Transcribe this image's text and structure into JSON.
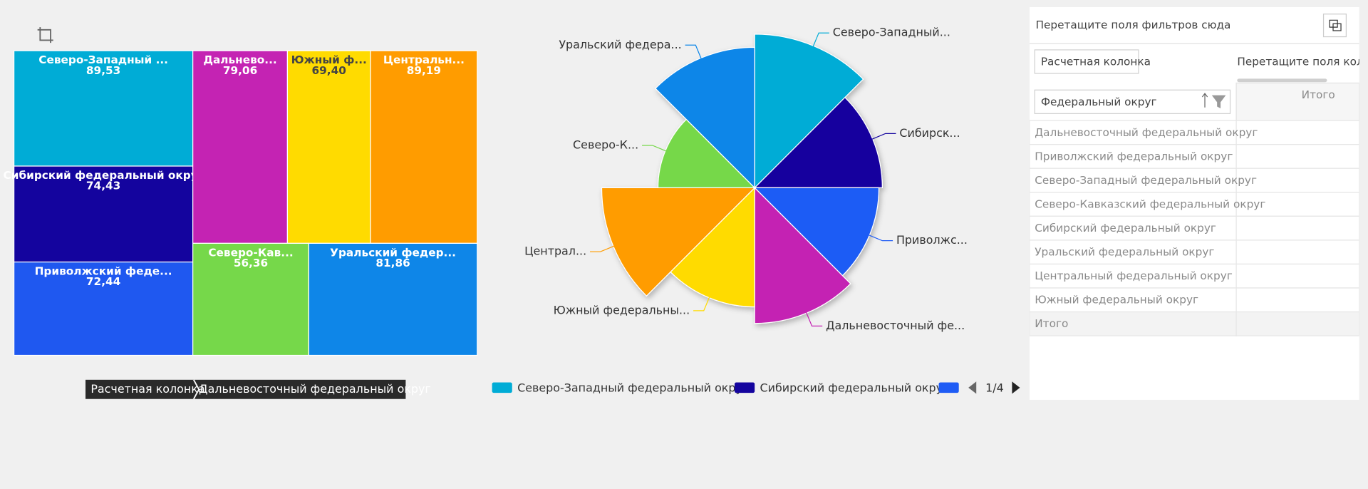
{
  "chart_data": [
    {
      "type": "treemap",
      "categories": [
        "Северо-Западный ...",
        "Сибирский федеральный округ",
        "Приволжский феде...",
        "Дальнево...",
        "Южный ф...",
        "Центральн...",
        "Северо-Кав...",
        "Уральский федер..."
      ],
      "values": [
        89.53,
        74.43,
        72.44,
        79.06,
        69.4,
        89.19,
        56.36,
        81.86
      ],
      "value_labels": [
        "89,53",
        "74,43",
        "72,44",
        "79,06",
        "69,40",
        "89,19",
        "56,36",
        "81,86"
      ],
      "colors": [
        "#00acd6",
        "#14049e",
        "#1f58f0",
        "#c423b3",
        "#ffdb00",
        "#ff9c00",
        "#76d84a",
        "#0e86e8"
      ]
    },
    {
      "type": "rose",
      "categories": [
        "Северо-Западный...",
        "Сибирск...",
        "Приволжс...",
        "Дальневосточный фе...",
        "Южный федеральны...",
        "Централ...",
        "Северо-К...",
        "Уральский федера..."
      ],
      "values": [
        89.53,
        74.43,
        72.44,
        79.06,
        69.4,
        89.19,
        56.36,
        81.86
      ],
      "colors": [
        "#00acd6",
        "#14049e",
        "#1f5cf5",
        "#c423b3",
        "#ffdb00",
        "#ff9c00",
        "#76d84a",
        "#0e86e8"
      ],
      "legend": [
        "Северо-Западный федеральный округ",
        "Сибирский федеральный округ",
        null
      ],
      "legend_page": "1/4"
    }
  ],
  "breadcrumb": [
    "Расчетная колонка",
    "Дальневосточный федеральный округ"
  ],
  "pivot": {
    "filter_hint": "Перетащите поля фильтров сюда",
    "column_field": "Расчетная колонка",
    "column_hint": "Перетащите поля колонок сюда",
    "row_field": "Федеральный округ",
    "total_header": "Итого",
    "rows": [
      "Дальневосточный федеральный округ",
      "Приволжский федеральный округ",
      "Северо-Западный федеральный округ",
      "Северо-Кавказский федеральный округ",
      "Сибирский федеральный округ",
      "Уральский федеральный округ",
      "Центральный федеральный округ",
      "Южный федеральный округ"
    ],
    "total_row": "Итого"
  }
}
